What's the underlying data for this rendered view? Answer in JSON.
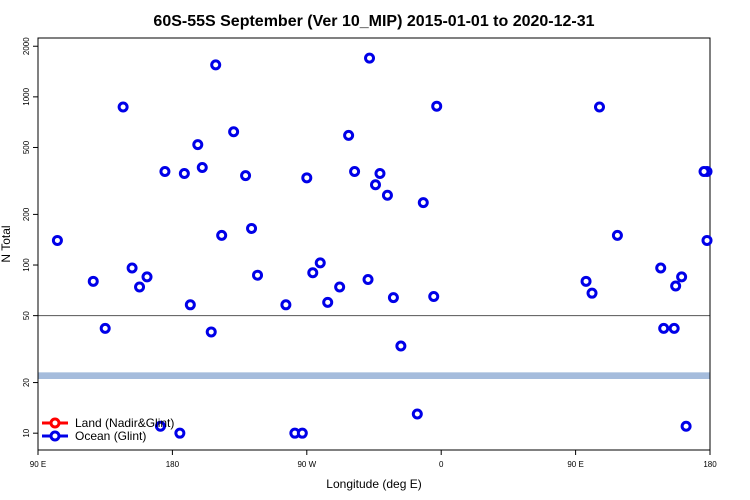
{
  "chart_data": {
    "type": "scatter",
    "title": "60S-55S September (Ver 10_MIP)   2015-01-01 to 2020-12-31",
    "xlabel": "Longitude (deg E)",
    "ylabel": "N Total",
    "x_ticks": [
      {
        "value": 90,
        "label": "90 E"
      },
      {
        "value": 180,
        "label": "180"
      },
      {
        "value": 270,
        "label": "90 W"
      },
      {
        "value": 360,
        "label": "0"
      },
      {
        "value": 450,
        "label": "90 E"
      },
      {
        "value": 540,
        "label": "180"
      }
    ],
    "y_ticks": [
      {
        "value": 10,
        "label": "10"
      },
      {
        "value": 20,
        "label": "20"
      },
      {
        "value": 50,
        "label": "50"
      },
      {
        "value": 100,
        "label": "100"
      },
      {
        "value": 200,
        "label": "200"
      },
      {
        "value": 500,
        "label": "500"
      },
      {
        "value": 1000,
        "label": "1000"
      },
      {
        "value": 2000,
        "label": "2000"
      }
    ],
    "xlim": [
      90,
      540
    ],
    "ylim_log": [
      0.9,
      3.35
    ],
    "y_scale": "log",
    "reference_line": 50,
    "band_range": [
      21,
      23
    ],
    "band_color": "#a5bcdc",
    "legend_position": "bottom-left",
    "series": [
      {
        "name": "Land (Nadir&Glint)",
        "color": "#ff0000",
        "x": [],
        "y": []
      },
      {
        "name": "Ocean (Glint)",
        "color": "#0000e8",
        "x": [
          103,
          127,
          135,
          147,
          153,
          158,
          163,
          172,
          175,
          185,
          188,
          192,
          197,
          200,
          206,
          209,
          213,
          221,
          229,
          233,
          237,
          256,
          262,
          267,
          270,
          274,
          279,
          284,
          292,
          298,
          302,
          311,
          312,
          316,
          319,
          324,
          328,
          333,
          344,
          348,
          355,
          357,
          509,
          507,
          517,
          521,
          524,
          538,
          538,
          478,
          461,
          457,
          466,
          516,
          536
        ],
        "y": [
          140,
          80,
          42,
          870,
          96,
          74,
          85,
          11,
          360,
          10,
          350,
          58,
          520,
          380,
          40,
          1550,
          150,
          620,
          340,
          165,
          87,
          58,
          10,
          10,
          330,
          90,
          103,
          60,
          74,
          590,
          360,
          82,
          1700,
          300,
          350,
          260,
          64,
          33,
          13,
          235,
          65,
          880,
          42,
          96,
          75,
          85,
          11,
          360,
          140,
          150,
          68,
          80,
          870,
          42,
          360
        ]
      }
    ]
  }
}
